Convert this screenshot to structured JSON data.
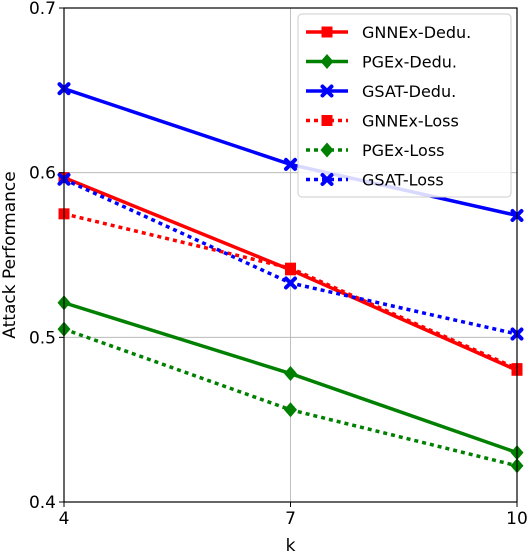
{
  "chart_data": {
    "type": "line",
    "x": [
      4,
      7,
      10
    ],
    "xlabel": "k",
    "ylabel": "Attack Performance",
    "xlim": [
      4,
      10
    ],
    "ylim": [
      0.4,
      0.7
    ],
    "xticks": [
      "4",
      "7",
      "10"
    ],
    "yticks": [
      "0.4",
      "0.5",
      "0.6",
      "0.7"
    ],
    "grid": true,
    "legend_position": "top-right",
    "series": [
      {
        "name": "GNNEx-Dedu.",
        "values": [
          0.597,
          0.541,
          0.48
        ],
        "color": "#ff0000",
        "linestyle": "solid",
        "marker": "square"
      },
      {
        "name": "PGEx-Dedu.",
        "values": [
          0.521,
          0.478,
          0.43
        ],
        "color": "#008000",
        "linestyle": "solid",
        "marker": "diamond"
      },
      {
        "name": "GSAT-Dedu.",
        "values": [
          0.651,
          0.605,
          0.574
        ],
        "color": "#0000ff",
        "linestyle": "solid",
        "marker": "x"
      },
      {
        "name": "GNNEx-Loss",
        "values": [
          0.575,
          0.542,
          0.481
        ],
        "color": "#ff0000",
        "linestyle": "dotted",
        "marker": "square"
      },
      {
        "name": "PGEx-Loss",
        "values": [
          0.505,
          0.456,
          0.422
        ],
        "color": "#008000",
        "linestyle": "dotted",
        "marker": "diamond"
      },
      {
        "name": "GSAT-Loss",
        "values": [
          0.596,
          0.533,
          0.502
        ],
        "color": "#0000ff",
        "linestyle": "dotted",
        "marker": "x"
      }
    ]
  }
}
